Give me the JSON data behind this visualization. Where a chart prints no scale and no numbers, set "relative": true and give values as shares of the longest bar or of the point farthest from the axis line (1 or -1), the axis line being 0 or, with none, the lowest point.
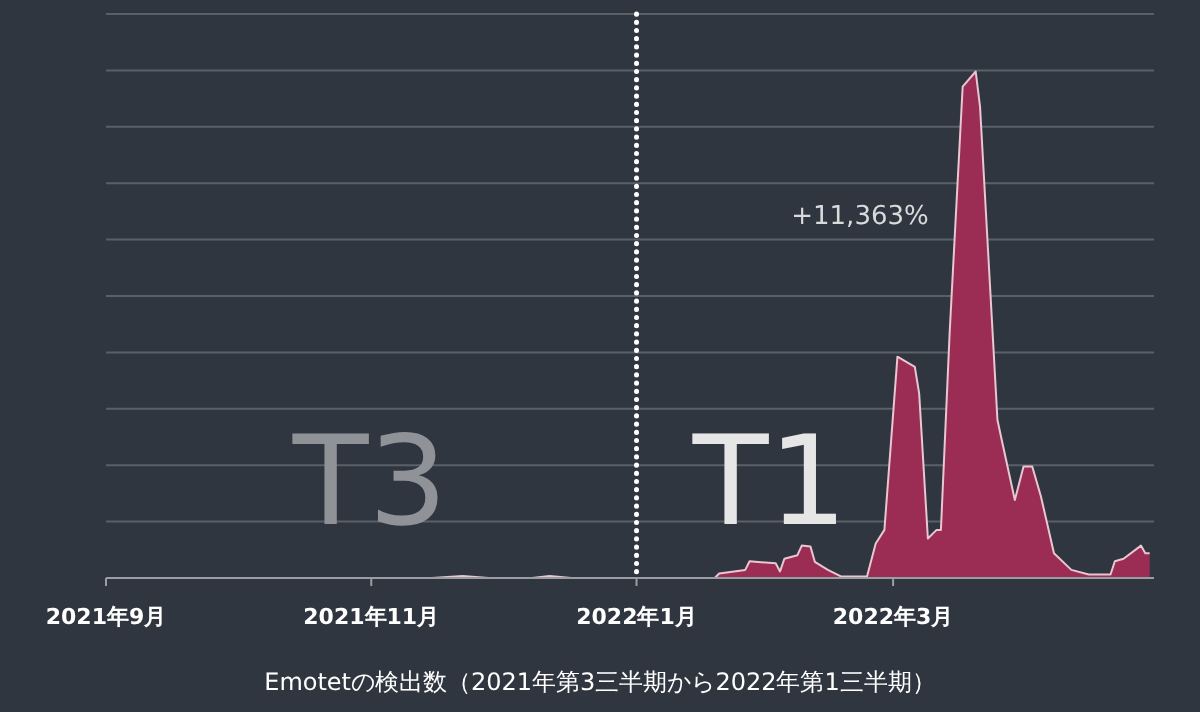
{
  "chart_data": {
    "type": "area",
    "relative": true,
    "xlabel": "Emotetの検出数（2021年第3三半期から2022年第1三半期）",
    "annotations": [
      "T3",
      "T1",
      "+11,363%"
    ],
    "xlim": [
      "2021-09-01",
      "2022-04-30"
    ],
    "xticks": [
      {
        "value": "2021-09-01",
        "label": "2021年9月"
      },
      {
        "value": "2021-11-01",
        "label": "2021年11月"
      },
      {
        "value": "2022-01-01",
        "label": "2022年1月"
      },
      {
        "value": "2022-03-01",
        "label": "2022年3月"
      }
    ],
    "grid": "y",
    "ref_lines": [
      {
        "axis": "x",
        "value": "2022-01-01",
        "label": null,
        "color": "#ffffff",
        "line_style": "dotted"
      }
    ],
    "series": [
      {
        "color": "#9b2d55",
        "x": [
          "2021-09-01",
          "2021-11-15",
          "2021-11-22",
          "2021-11-28",
          "2021-12-08",
          "2021-12-12",
          "2021-12-17",
          "2022-01-19",
          "2022-01-20",
          "2022-01-26",
          "2022-01-27",
          "2022-02-02",
          "2022-02-03",
          "2022-02-04",
          "2022-02-07",
          "2022-02-08",
          "2022-02-10",
          "2022-02-11",
          "2022-02-14",
          "2022-02-17",
          "2022-02-23",
          "2022-02-25",
          "2022-02-27",
          "2022-03-02",
          "2022-03-06",
          "2022-03-07",
          "2022-03-09",
          "2022-03-11",
          "2022-03-12",
          "2022-03-14",
          "2022-03-17",
          "2022-03-20",
          "2022-03-21",
          "2022-03-25",
          "2022-03-26",
          "2022-03-29",
          "2022-03-31",
          "2022-04-02",
          "2022-04-04",
          "2022-04-07",
          "2022-04-11",
          "2022-04-15",
          "2022-04-20",
          "2022-04-21",
          "2022-04-23",
          "2022-04-27",
          "2022-04-28",
          "2022-04-29"
        ],
        "values": [
          0,
          0,
          0.004,
          0,
          0,
          0.004,
          0,
          0,
          0.009,
          0.016,
          0.033,
          0.029,
          0.013,
          0.038,
          0.045,
          0.064,
          0.062,
          0.032,
          0.016,
          0.003,
          0.003,
          0.068,
          0.095,
          0.437,
          0.417,
          0.364,
          0.078,
          0.095,
          0.095,
          0.483,
          0.97,
          1.0,
          0.93,
          0.312,
          0.272,
          0.154,
          0.22,
          0.22,
          0.161,
          0.049,
          0.016,
          0.007,
          0.007,
          0.033,
          0.038,
          0.064,
          0.049,
          0.049
        ]
      }
    ]
  }
}
